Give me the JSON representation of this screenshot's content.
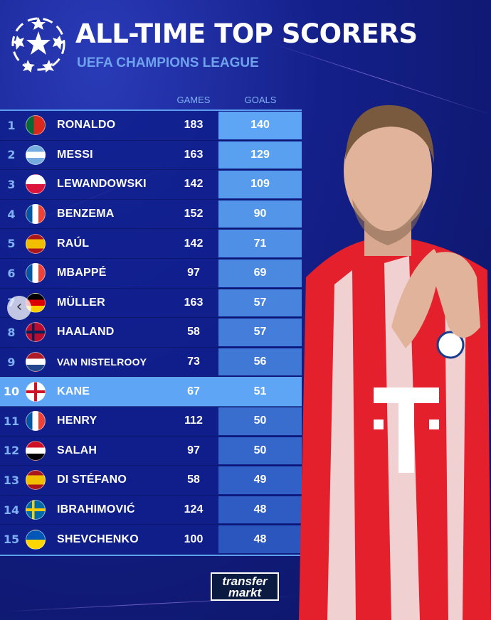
{
  "header": {
    "title": "ALL-TIME TOP SCORERS",
    "subtitle": "UEFA CHAMPIONS LEAGUE"
  },
  "chart_data": {
    "type": "table",
    "title": "ALL-TIME TOP SCORERS",
    "subtitle": "UEFA CHAMPIONS LEAGUE",
    "columns": [
      "GAMES",
      "GOALS"
    ],
    "highlight_rank": 10,
    "rows": [
      {
        "rank": "1",
        "flag": "PT",
        "name": "RONALDO",
        "games": "183",
        "goals": "140"
      },
      {
        "rank": "2",
        "flag": "AR",
        "name": "MESSI",
        "games": "163",
        "goals": "129"
      },
      {
        "rank": "3",
        "flag": "PL",
        "name": "LEWANDOWSKI",
        "games": "142",
        "goals": "109"
      },
      {
        "rank": "4",
        "flag": "FR",
        "name": "BENZEMA",
        "games": "152",
        "goals": "90"
      },
      {
        "rank": "5",
        "flag": "ES",
        "name": "RAÚL",
        "games": "142",
        "goals": "71"
      },
      {
        "rank": "6",
        "flag": "FR",
        "name": "MBAPPÉ",
        "games": "97",
        "goals": "69"
      },
      {
        "rank": "7",
        "flag": "DE",
        "name": "MÜLLER",
        "games": "163",
        "goals": "57"
      },
      {
        "rank": "8",
        "flag": "NO",
        "name": "HAALAND",
        "games": "58",
        "goals": "57"
      },
      {
        "rank": "9",
        "flag": "NL",
        "name": "VAN NISTELROOY",
        "games": "73",
        "goals": "56"
      },
      {
        "rank": "10",
        "flag": "ENG",
        "name": "KANE",
        "games": "67",
        "goals": "51"
      },
      {
        "rank": "11",
        "flag": "FR",
        "name": "HENRY",
        "games": "112",
        "goals": "50"
      },
      {
        "rank": "12",
        "flag": "EG",
        "name": "SALAH",
        "games": "97",
        "goals": "50"
      },
      {
        "rank": "13",
        "flag": "ES",
        "name": "DI STÉFANO",
        "games": "58",
        "goals": "49"
      },
      {
        "rank": "14",
        "flag": "SE",
        "name": "IBRAHIMOVIĆ",
        "games": "124",
        "goals": "48"
      },
      {
        "rank": "15",
        "flag": "UA",
        "name": "SHEVCHENKO",
        "games": "100",
        "goals": "48"
      }
    ]
  },
  "brand": {
    "logo_text": "transfer markt"
  },
  "colors": {
    "accent": "#5ea6f5",
    "background": "#14208a",
    "shirt_red": "#e4202c"
  }
}
